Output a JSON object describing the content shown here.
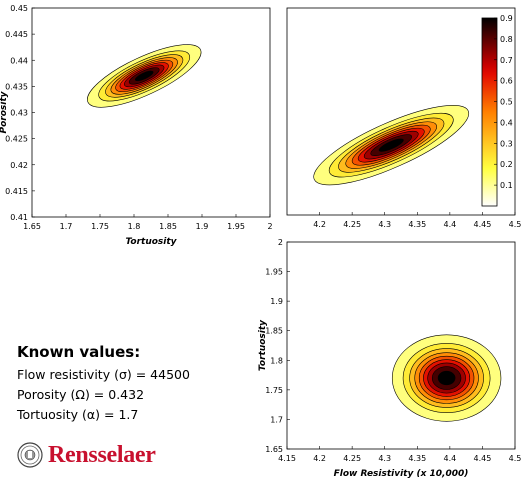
{
  "chart_data": [
    {
      "type": "contour",
      "xlabel": "Tortuosity",
      "ylabel": "Porosity",
      "xlim": [
        1.65,
        2.0
      ],
      "ylim": [
        0.41,
        0.45
      ],
      "xticks": [
        "1.65",
        "1.7",
        "1.75",
        "1.8",
        "1.85",
        "1.9",
        "1.95",
        "2"
      ],
      "yticks": [
        "0.41",
        "0.415",
        "0.42",
        "0.425",
        "0.43",
        "0.435",
        "0.44",
        "0.445",
        "0.45"
      ],
      "peak": {
        "x": 1.815,
        "y": 0.437,
        "value": 0.9
      }
    },
    {
      "type": "contour",
      "xlabel": "",
      "ylabel": "",
      "xlim": [
        4.15,
        4.5
      ],
      "ylim": [
        0.41,
        0.45
      ],
      "xticks": [
        "4.2",
        "4.25",
        "4.3",
        "4.35",
        "4.4",
        "4.45",
        "4.5"
      ],
      "yticks": [],
      "peak": {
        "x": 4.31,
        "y": 0.4235,
        "value": 0.9
      }
    },
    {
      "type": "contour",
      "xlabel": "Flow Resistivity (x 10,000)",
      "ylabel": "Tortuosity",
      "xlim": [
        4.15,
        4.5
      ],
      "ylim": [
        1.65,
        2.0
      ],
      "xticks": [
        "4.15",
        "4.2",
        "4.25",
        "4.3",
        "4.35",
        "4.4",
        "4.45",
        "4.5"
      ],
      "yticks": [
        "1.65",
        "1.7",
        "1.75",
        "1.8",
        "1.85",
        "1.9",
        "1.95",
        "2"
      ],
      "peak": {
        "x": 4.395,
        "y": 1.77,
        "value": 0.9
      }
    }
  ],
  "colorbar": {
    "min": 0,
    "max": 0.9,
    "ticks": [
      "0.9",
      "0.8",
      "0.7",
      "0.6",
      "0.5",
      "0.4",
      "0.3",
      "0.2",
      "0.1"
    ],
    "colors": {
      "low": "#ffffff",
      "mid_low": "#ffff40",
      "mid": "#ff8000",
      "mid_high": "#e00000",
      "high": "#000000"
    }
  },
  "known_values": {
    "heading": "Known values:",
    "flow": "Flow resistivity (σ) = 44500",
    "porosity": "Porosity (Ω) = 0.432",
    "tortuosity": "Tortuosity (α) = 1.7"
  },
  "logo": {
    "text": "Rensselaer",
    "color": "#c8102e",
    "icon": "university-seal-icon"
  }
}
